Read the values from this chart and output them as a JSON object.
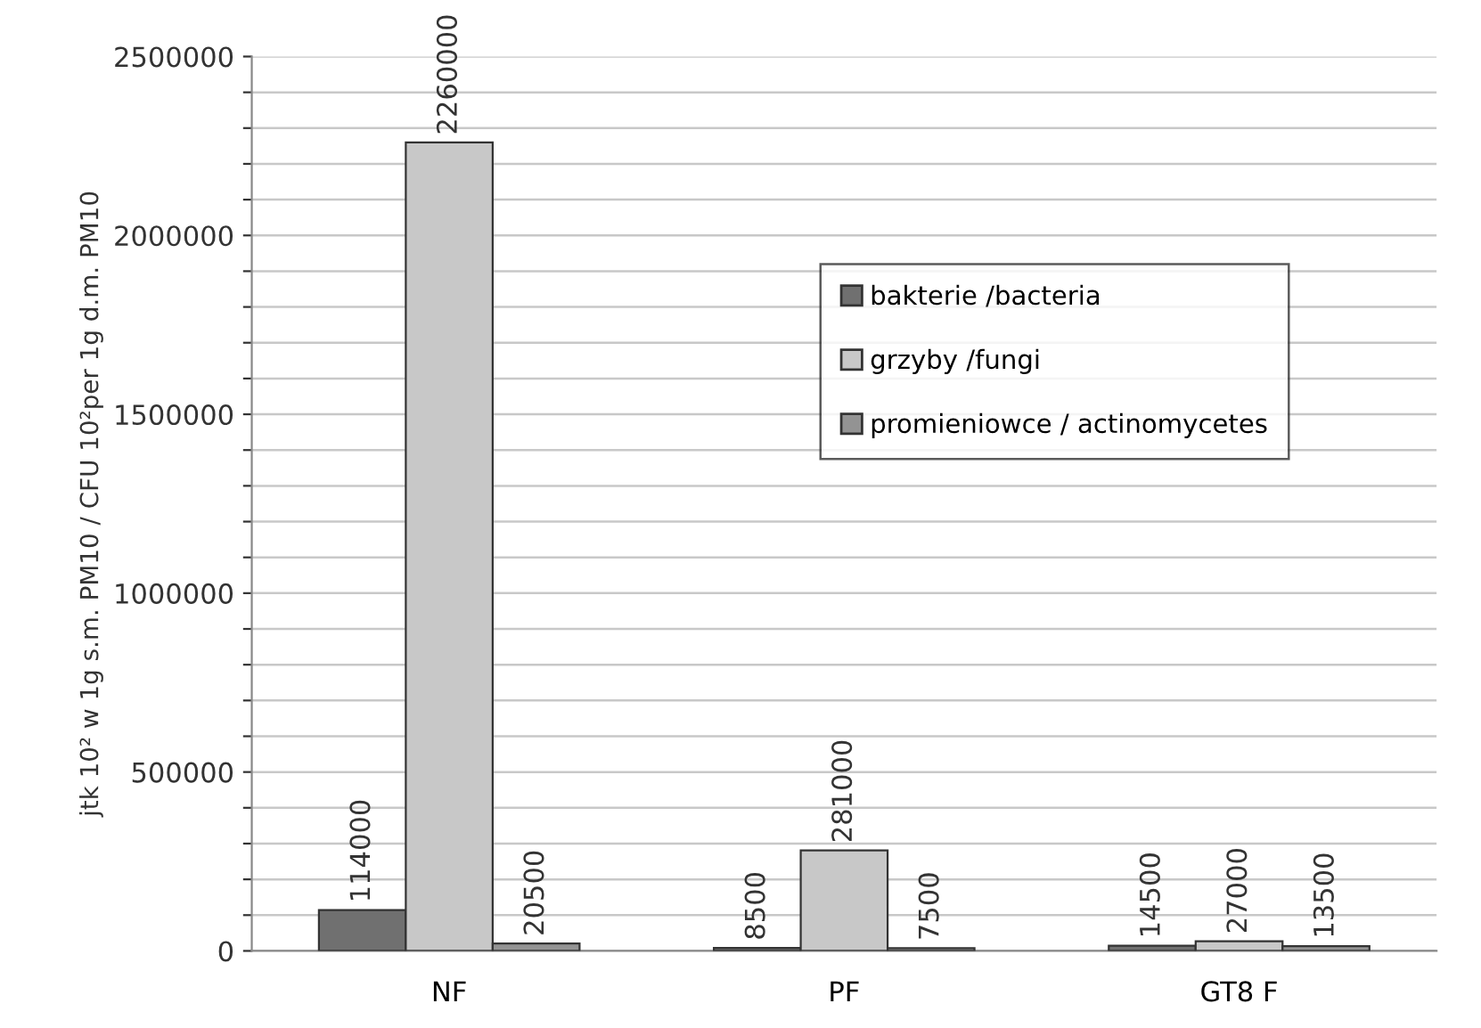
{
  "chart_data": {
    "type": "bar",
    "ylabel": "jtk 10² w 1g s.m. PM10 / CFU 10²per 1g d.m. PM10",
    "categories": [
      "NF",
      "PF",
      "GT8 F"
    ],
    "series": [
      {
        "name": "bakterie /bacteria",
        "color": "#707070",
        "values": [
          114000,
          8500,
          14500
        ]
      },
      {
        "name": "grzyby /fungi",
        "color": "#c8c8c8",
        "values": [
          2260000,
          281000,
          27000
        ]
      },
      {
        "name": "promieniowce / actinomycetes",
        "color": "#939393",
        "values": [
          20500,
          7500,
          13500
        ]
      }
    ],
    "ylim": [
      0,
      2500000
    ],
    "yticks": [
      0,
      {
        "value": 100000,
        "label": null
      },
      {
        "value": 200000,
        "label": null
      },
      {
        "value": 300000,
        "label": null
      },
      {
        "value": 400000,
        "label": null
      },
      500000,
      {
        "value": 600000,
        "label": null
      },
      {
        "value": 700000,
        "label": null
      },
      {
        "value": 800000,
        "label": null
      },
      {
        "value": 900000,
        "label": null
      },
      1000000,
      {
        "value": 1100000,
        "label": null
      },
      {
        "value": 1200000,
        "label": null
      },
      {
        "value": 1300000,
        "label": null
      },
      {
        "value": 1400000,
        "label": null
      },
      1500000,
      {
        "value": 1600000,
        "label": null
      },
      {
        "value": 1700000,
        "label": null
      },
      {
        "value": 1800000,
        "label": null
      },
      {
        "value": 1900000,
        "label": null
      },
      2000000,
      {
        "value": 2100000,
        "label": null
      },
      {
        "value": 2200000,
        "label": null
      },
      {
        "value": 2300000,
        "label": null
      },
      {
        "value": 2400000,
        "label": null
      },
      2500000
    ],
    "grid": "y",
    "legend": "top right",
    "data_labels": true
  }
}
